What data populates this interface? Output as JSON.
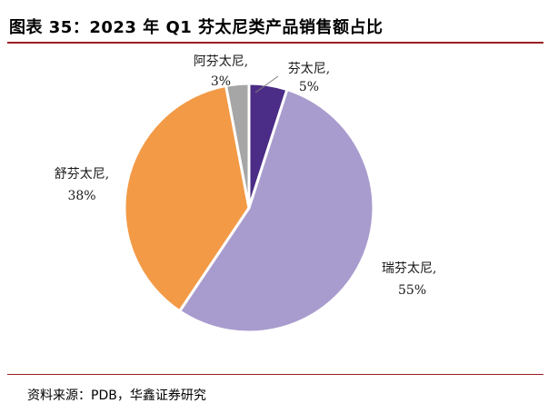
{
  "header": {
    "title": "图表 35：2023 年 Q1 芬太尼类产品销售额占比"
  },
  "footer": {
    "source": "资料来源：PDB，华鑫证券研究"
  },
  "chart_data": {
    "type": "pie",
    "title": "2023 年 Q1 芬太尼类产品销售额占比",
    "start": "12 o'clock, clockwise",
    "slices": [
      {
        "name": "芬太尼",
        "value": 5,
        "label": "芬太尼,",
        "pct_label": "5%",
        "color": "#4B2C86"
      },
      {
        "name": "瑞芬太尼",
        "value": 55,
        "label": "瑞芬太尼,",
        "pct_label": "55%",
        "color": "#A89CCE"
      },
      {
        "name": "舒芬太尼",
        "value": 38,
        "label": "舒芬太尼,",
        "pct_label": "38%",
        "color": "#F39A46"
      },
      {
        "name": "阿芬太尼",
        "value": 3,
        "label": "阿芬太尼,",
        "pct_label": "3%",
        "color": "#A6A6A6"
      }
    ]
  }
}
